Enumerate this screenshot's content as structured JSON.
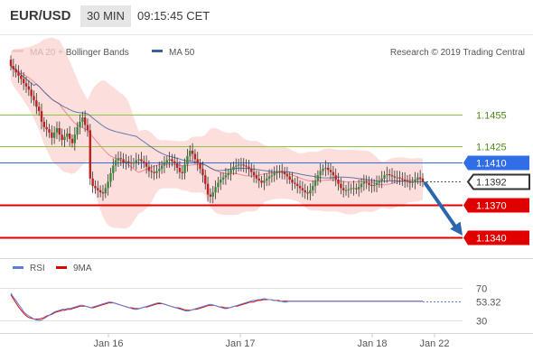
{
  "header": {
    "symbol": "EUR/USD",
    "timeframe": "30 MIN",
    "time": "09:15:45 CET"
  },
  "legend": {
    "main": [
      {
        "label": "MA 20 + Bollinger Bands",
        "color": "#f08a8a"
      },
      {
        "label": "MA 50",
        "color": "#3c5fa0"
      }
    ],
    "rsi": [
      {
        "label": "RSI",
        "color": "#5b7fd6"
      },
      {
        "label": "9MA",
        "color": "#e00000"
      }
    ]
  },
  "copyright": "Research © 2019 Trading Central",
  "chart_data": {
    "type": "candlestick",
    "price_range": [
      1.1324,
      1.1528
    ],
    "current_price": 1.1392,
    "levels": [
      {
        "value": 1.1455,
        "label": "1.1455",
        "kind": "resistance",
        "color": "#8dc63f"
      },
      {
        "value": 1.1425,
        "label": "1.1425",
        "kind": "resistance",
        "color": "#8dc63f"
      },
      {
        "value": 1.141,
        "label": "1.1410",
        "kind": "pivot",
        "color": "#2f6ee6"
      },
      {
        "value": 1.137,
        "label": "1.1370",
        "kind": "support",
        "color": "#e00000"
      },
      {
        "value": 1.134,
        "label": "1.1340",
        "kind": "support",
        "color": "#e00000"
      }
    ],
    "last_price_label": "1.1392",
    "forecast": {
      "from": 1.1392,
      "to": 1.134,
      "direction": "down"
    },
    "x_labels": [
      "Jan 16",
      "Jan 17",
      "Jan 18",
      "Jan 22"
    ],
    "rsi": {
      "range": [
        15,
        85
      ],
      "levels": [
        70,
        30
      ],
      "current": 53.32,
      "current_label": "53.32"
    },
    "closes": [
      1.15,
      1.1497,
      1.1494,
      1.1491,
      1.1488,
      1.1484,
      1.1481,
      1.1478,
      1.1472,
      1.1468,
      1.1462,
      1.1458,
      1.1448,
      1.1443,
      1.1441,
      1.1438,
      1.1433,
      1.1438,
      1.1442,
      1.1436,
      1.1431,
      1.1434,
      1.1437,
      1.1432,
      1.1428,
      1.1436,
      1.1443,
      1.1448,
      1.1452,
      1.1445,
      1.144,
      1.1395,
      1.1388,
      1.1386,
      1.1384,
      1.1382,
      1.1381,
      1.1386,
      1.1392,
      1.14,
      1.1407,
      1.1412,
      1.1414,
      1.1413,
      1.141,
      1.1411,
      1.141,
      1.1409,
      1.141,
      1.1412,
      1.1413,
      1.1411,
      1.141,
      1.1406,
      1.1402,
      1.1401,
      1.14,
      1.1402,
      1.1404,
      1.1407,
      1.1409,
      1.1412,
      1.1413,
      1.1411,
      1.1409,
      1.1405,
      1.1401,
      1.14,
      1.1408,
      1.1416,
      1.1421,
      1.1418,
      1.1413,
      1.1409,
      1.1404,
      1.1398,
      1.139,
      1.138,
      1.1378,
      1.1382,
      1.1387,
      1.1391,
      1.1394,
      1.1396,
      1.1398,
      1.14,
      1.1403,
      1.1406,
      1.1407,
      1.1408,
      1.1408,
      1.1407,
      1.1406,
      1.1404,
      1.1401,
      1.1398,
      1.1395,
      1.1393,
      1.1391,
      1.1393,
      1.1395,
      1.1397,
      1.1398,
      1.14,
      1.1401,
      1.1402,
      1.1401,
      1.1399,
      1.1397,
      1.1394,
      1.1391,
      1.139,
      1.1388,
      1.1386,
      1.1384,
      1.1382,
      1.1381,
      1.1384,
      1.1388,
      1.1393,
      1.1398,
      1.1402,
      1.1404,
      1.1405,
      1.1403,
      1.1401,
      1.1398,
      1.1394,
      1.139,
      1.1386,
      1.1384,
      1.1384,
      1.1385,
      1.1386,
      1.1386,
      1.1385,
      1.1387,
      1.139,
      1.1392,
      1.1391,
      1.1389,
      1.1388,
      1.1389,
      1.1391,
      1.1393,
      1.1395,
      1.1398,
      1.1399,
      1.1398,
      1.1397,
      1.1396,
      1.1396,
      1.1395,
      1.1394,
      1.1393,
      1.1392,
      1.1391,
      1.1392,
      1.1394,
      1.1396,
      1.1395,
      1.1392
    ],
    "rsi_values": [
      63,
      58,
      54,
      49,
      45,
      40,
      37,
      35,
      33,
      31,
      30,
      29,
      30,
      32,
      34,
      36,
      38,
      40,
      41,
      42,
      43,
      43,
      44,
      44,
      45,
      46,
      47,
      48,
      48,
      47,
      46,
      45,
      46,
      47,
      48,
      49,
      50,
      51,
      52,
      52,
      51,
      50,
      49,
      48,
      47,
      46,
      45,
      44,
      43,
      43,
      44,
      45,
      46,
      47,
      48,
      49,
      50,
      51,
      51,
      50,
      49,
      48,
      47,
      46,
      45,
      44,
      43,
      42,
      41,
      41,
      42,
      43,
      44,
      45,
      46,
      47,
      48,
      49,
      49,
      48,
      47,
      46,
      45,
      44,
      44,
      45,
      46,
      47,
      48,
      49,
      50,
      51,
      52,
      53,
      54,
      54,
      55,
      55,
      56,
      56,
      55,
      55,
      54,
      54,
      53,
      53,
      52,
      52,
      53,
      53,
      53,
      53,
      53,
      53,
      53,
      53,
      53,
      53,
      53,
      53,
      53,
      53,
      53,
      53,
      53,
      53,
      53,
      53,
      53,
      53,
      53,
      53,
      53,
      53,
      53,
      53,
      53,
      53,
      53,
      53,
      53,
      53,
      53,
      53,
      53,
      53,
      53,
      53,
      53,
      53,
      53,
      53,
      53,
      53,
      53,
      53,
      53,
      53,
      53,
      53,
      53
    ],
    "rsi_ma": [
      61,
      56,
      51,
      46,
      42,
      38,
      35,
      33,
      32,
      31,
      31,
      31,
      32,
      33,
      35,
      36,
      37,
      39,
      40,
      41,
      42,
      42,
      43,
      43,
      44,
      45,
      46,
      47,
      47,
      47,
      46,
      45,
      45,
      46,
      47,
      48,
      49,
      50,
      51,
      51,
      51,
      50,
      49,
      48,
      47,
      46,
      45,
      45,
      44,
      44,
      44,
      45,
      46,
      46,
      47,
      48,
      49,
      50,
      50,
      50,
      49,
      48,
      47,
      46,
      45,
      45,
      44,
      43,
      42,
      42,
      42,
      43,
      43,
      44,
      45,
      46,
      47,
      48,
      48,
      48,
      47,
      46,
      46,
      45,
      45,
      45,
      46,
      47,
      47,
      48,
      49,
      50,
      51,
      52,
      52,
      53,
      54,
      54,
      55,
      55,
      55,
      55,
      54,
      54,
      54,
      53,
      53,
      53,
      53,
      53,
      53,
      53,
      53,
      53,
      53,
      53,
      53,
      53,
      53,
      53,
      53,
      53,
      53,
      53,
      53,
      53,
      53,
      53,
      53,
      53,
      53,
      53,
      53,
      53,
      53,
      53,
      53,
      53,
      53,
      53,
      53,
      53,
      53,
      53,
      53,
      53,
      53,
      53,
      53,
      53,
      53,
      53,
      53,
      53,
      53,
      53,
      53,
      53,
      53,
      53,
      53
    ]
  }
}
